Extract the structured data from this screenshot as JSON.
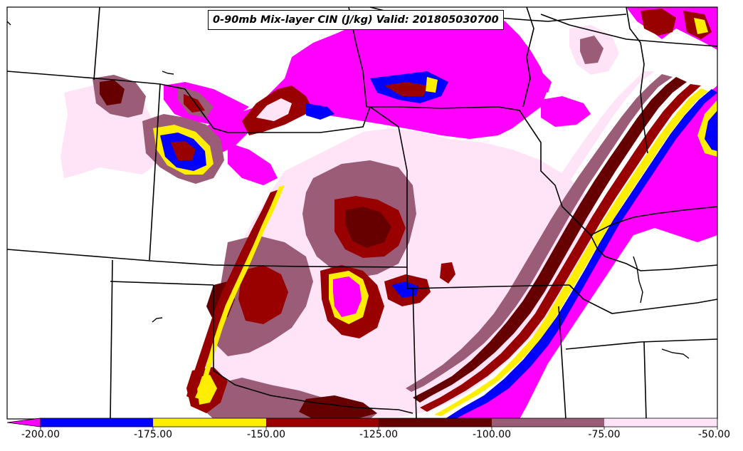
{
  "title": "0-90mb Mix-layer CIN (J/kg) Valid: 201805030700",
  "colors": {
    "le_-200": "#ff00ff",
    "-200_-175": "#0000ff",
    "-175_-150": "#ffee00",
    "-150_-125": "#990000",
    "-125_-100": "#660000",
    "-100_-75": "#9a5c76",
    "-75_-50": "#ffe4f8",
    "gt_-50": "#ffffff",
    "boundaries": "#000000"
  },
  "colorbar": {
    "ticks": [
      "-200.00",
      "-175.00",
      "-150.00",
      "-125.00",
      "-100.00",
      "-75.00",
      "-50.00"
    ],
    "bins": [
      {
        "range": "< -200",
        "color": "#ff00ff"
      },
      {
        "range": "-200 to -175",
        "color": "#0000ff"
      },
      {
        "range": "-175 to -150",
        "color": "#ffee00"
      },
      {
        "range": "-150 to -125",
        "color": "#990000"
      },
      {
        "range": "-125 to -100",
        "color": "#660000"
      },
      {
        "range": "-100 to -75",
        "color": "#9a5c76"
      },
      {
        "range": "-75 to -50",
        "color": "#ffe4f8"
      }
    ]
  }
}
